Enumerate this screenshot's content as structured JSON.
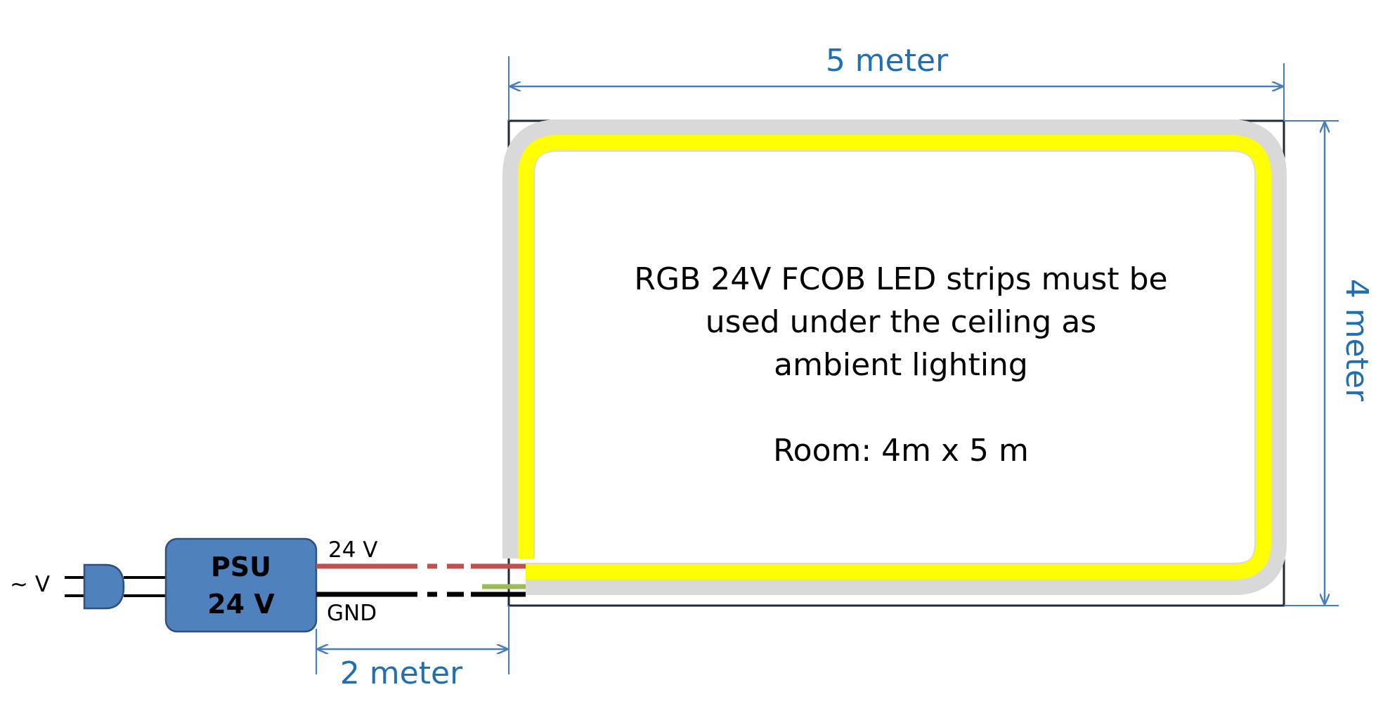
{
  "dimensions": {
    "width_label": "5 meter",
    "height_label": "4 meter",
    "cable_label": "2 meter"
  },
  "psu": {
    "line1": "PSU",
    "line2": "24 V"
  },
  "mains_label": "~ V",
  "wires": {
    "positive_label": "24 V",
    "ground_label": "GND"
  },
  "description": {
    "line1": "RGB 24V FCOB LED strips must be",
    "line2": "used under the ceiling as",
    "line3": "ambient lighting",
    "room": "Room: 4m x 5 m"
  },
  "colors": {
    "led": "#ffff00",
    "strip_border": "#d9d9d9",
    "dimension": "#1f6fb2",
    "psu_fill": "#4f81bd",
    "wire_positive": "#c0504d",
    "wire_ground": "#000000",
    "data_wire": "#9bbb59"
  }
}
